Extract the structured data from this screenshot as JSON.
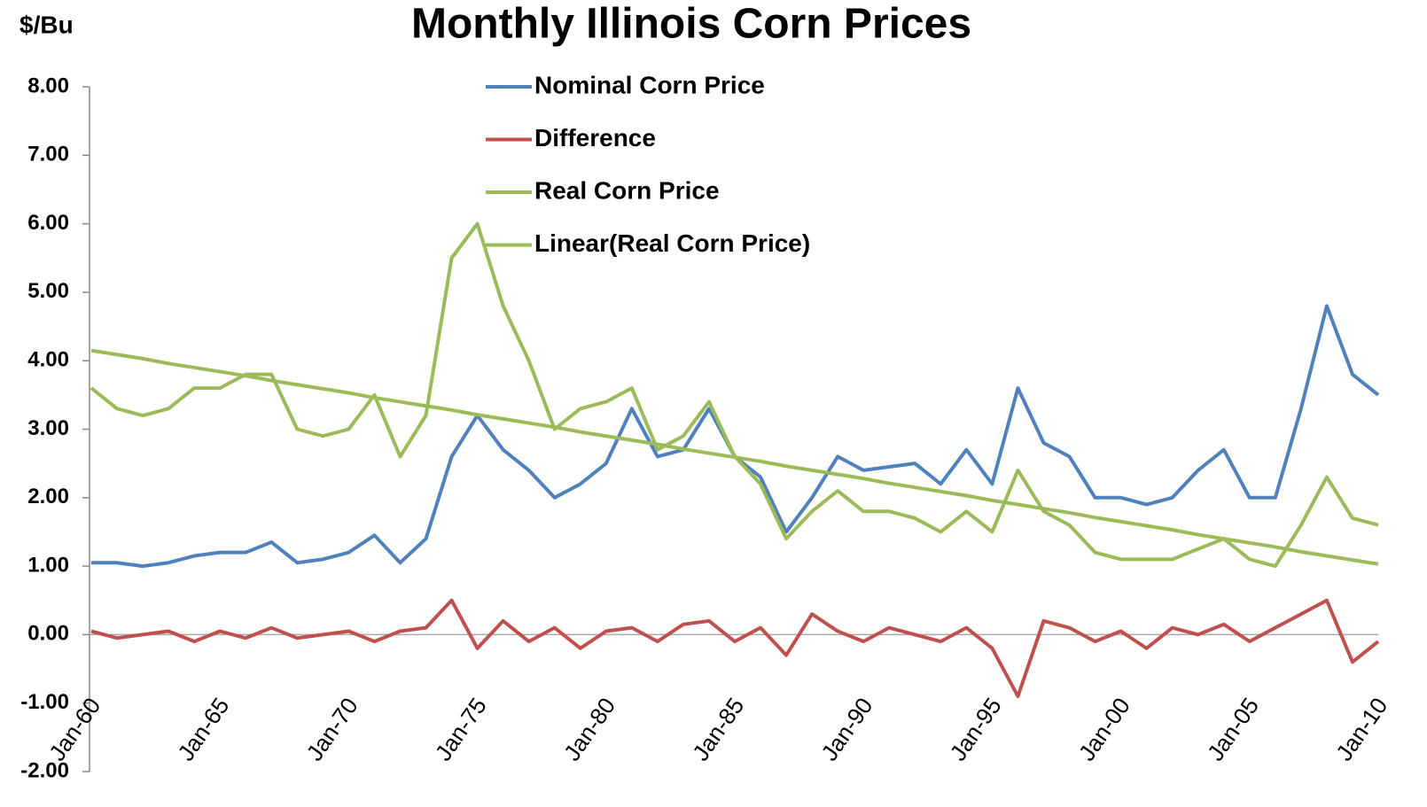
{
  "chart_data": {
    "type": "line",
    "title": "Monthly Illinois Corn Prices",
    "y_label": "$/Bu",
    "categories": [
      "Jan-60",
      null,
      null,
      null,
      null,
      "Jan-65",
      null,
      null,
      null,
      null,
      "Jan-70",
      null,
      null,
      null,
      null,
      "Jan-75",
      null,
      null,
      null,
      null,
      "Jan-80",
      null,
      null,
      null,
      null,
      "Jan-85",
      null,
      null,
      null,
      null,
      "Jan-90",
      null,
      null,
      null,
      null,
      "Jan-95",
      null,
      null,
      null,
      null,
      "Jan-00",
      null,
      null,
      null,
      null,
      "Jan-05",
      null,
      null,
      null,
      null,
      "Jan-10"
    ],
    "series": [
      {
        "name": "Nominal Corn Price",
        "color": "#4f81bd",
        "values": [
          1.05,
          1.05,
          1.0,
          1.05,
          1.15,
          1.2,
          1.2,
          1.35,
          1.05,
          1.1,
          1.2,
          1.45,
          1.05,
          1.4,
          2.6,
          3.2,
          2.7,
          2.4,
          2.0,
          2.2,
          2.5,
          3.3,
          2.6,
          2.7,
          3.3,
          2.6,
          2.3,
          1.5,
          2.0,
          2.6,
          2.4,
          2.45,
          2.5,
          2.2,
          2.7,
          2.2,
          3.6,
          2.8,
          2.6,
          2.0,
          2.0,
          1.9,
          2.0,
          2.4,
          2.7,
          2.0,
          2.0,
          3.3,
          4.8,
          3.8,
          3.5
        ]
      },
      {
        "name": "Difference",
        "color": "#c0504d",
        "values": [
          0.05,
          -0.05,
          0.0,
          0.05,
          -0.1,
          0.05,
          -0.05,
          0.1,
          -0.05,
          0.0,
          0.05,
          -0.1,
          0.05,
          0.1,
          0.5,
          -0.2,
          0.2,
          -0.1,
          0.1,
          -0.2,
          0.05,
          0.1,
          -0.1,
          0.15,
          0.2,
          -0.1,
          0.1,
          -0.3,
          0.3,
          0.05,
          -0.1,
          0.1,
          0.0,
          -0.1,
          0.1,
          -0.2,
          -0.9,
          0.2,
          0.1,
          -0.1,
          0.05,
          -0.2,
          0.1,
          0.0,
          0.15,
          -0.1,
          0.1,
          0.3,
          0.5,
          -0.4,
          -0.1
        ]
      },
      {
        "name": "Real Corn Price",
        "color": "#9bbb59",
        "values": [
          3.6,
          3.3,
          3.2,
          3.3,
          3.6,
          3.6,
          3.8,
          3.8,
          3.0,
          2.9,
          3.0,
          3.5,
          2.6,
          3.2,
          5.5,
          6.0,
          4.8,
          4.0,
          3.0,
          3.3,
          3.4,
          3.6,
          2.7,
          2.9,
          3.4,
          2.6,
          2.2,
          1.4,
          1.8,
          2.1,
          1.8,
          1.8,
          1.7,
          1.5,
          1.8,
          1.5,
          2.4,
          1.8,
          1.6,
          1.2,
          1.1,
          1.1,
          1.1,
          1.25,
          1.4,
          1.1,
          1.0,
          1.6,
          2.3,
          1.7,
          1.6
        ]
      },
      {
        "name": "Linear(Real Corn Price)",
        "color": "#9bbb59",
        "values": [
          4.15,
          4.09,
          4.03,
          3.96,
          3.9,
          3.84,
          3.78,
          3.71,
          3.65,
          3.59,
          3.53,
          3.46,
          3.4,
          3.34,
          3.28,
          3.21,
          3.15,
          3.09,
          3.03,
          2.96,
          2.9,
          2.84,
          2.78,
          2.71,
          2.65,
          2.59,
          2.53,
          2.46,
          2.4,
          2.34,
          2.28,
          2.21,
          2.15,
          2.09,
          2.03,
          1.96,
          1.9,
          1.84,
          1.78,
          1.71,
          1.65,
          1.59,
          1.53,
          1.46,
          1.4,
          1.34,
          1.28,
          1.21,
          1.15,
          1.09,
          1.03
        ]
      }
    ],
    "ylim": [
      -2,
      8
    ],
    "yticks": [
      {
        "value": -2,
        "label": "-2.00"
      },
      {
        "value": -1,
        "label": "-1.00"
      },
      {
        "value": 0,
        "label": "0.00"
      },
      {
        "value": 1,
        "label": "1.00"
      },
      {
        "value": 2,
        "label": "2.00"
      },
      {
        "value": 3,
        "label": "3.00"
      },
      {
        "value": 4,
        "label": "4.00"
      },
      {
        "value": 5,
        "label": "5.00"
      },
      {
        "value": 6,
        "label": "6.00"
      },
      {
        "value": 7,
        "label": "7.00"
      },
      {
        "value": 8,
        "label": "8.00"
      }
    ],
    "legend": "top"
  }
}
